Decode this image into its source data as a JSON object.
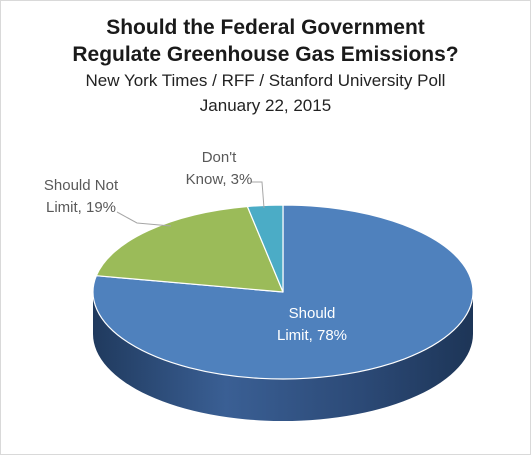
{
  "chart_data": {
    "type": "pie",
    "title_lines": [
      "Should the Federal Government",
      "Regulate Greenhouse Gas Emissions?"
    ],
    "subtitle_lines": [
      "New York Times / RFF / Stanford University Poll",
      "January 22, 2015"
    ],
    "three_d": true,
    "slices": [
      {
        "label_lines": [
          "Should",
          "Limit, 78%"
        ],
        "value": 78,
        "color": "#4f81bd",
        "side_color": "#2f4f7f"
      },
      {
        "label_lines": [
          "Should Not",
          "Limit, 19%"
        ],
        "value": 19,
        "color": "#9bbb59",
        "side_color": "#6d8a3a"
      },
      {
        "label_lines": [
          "Don't",
          "Know, 3%"
        ],
        "value": 3,
        "color": "#4bacc6",
        "side_color": "#2e7d92"
      }
    ]
  }
}
